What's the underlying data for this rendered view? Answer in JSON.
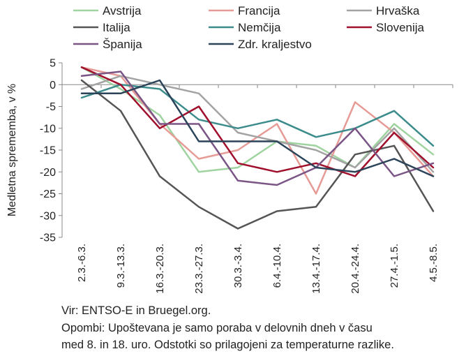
{
  "chart_data": {
    "type": "line",
    "ylabel": "Medletna sprememba, v %",
    "ylim": [
      -35,
      5
    ],
    "yticks": [
      5,
      0,
      -5,
      -10,
      -15,
      -20,
      -25,
      -30,
      -35
    ],
    "categories": [
      "2.3.-6.3.",
      "9.3.-13.3.",
      "16.3.-20.3.",
      "23.3.-27.3.",
      "30.3.-3.4.",
      "6.4.-10.4.",
      "13.4.-17.4.",
      "20.4.-24.4.",
      "27.4.-1.5.",
      "4.5.-8.5."
    ],
    "grid": false,
    "legend_position": "top",
    "series": [
      {
        "name": "Avstrija",
        "color": "#9fd39f",
        "values": [
          4,
          -1,
          -7,
          -20,
          -19,
          -13,
          -14,
          -19,
          -9,
          -16
        ]
      },
      {
        "name": "Francija",
        "color": "#e79b96",
        "values": [
          4,
          2,
          -9,
          -17,
          -15,
          -9,
          -25,
          -4,
          -11,
          -21
        ]
      },
      {
        "name": "Hrvaška",
        "color": "#a3a3a3",
        "values": [
          -1,
          2,
          0,
          -2,
          -11,
          -13,
          -15,
          -19,
          -10,
          -20
        ]
      },
      {
        "name": "Italija",
        "color": "#555555",
        "values": [
          1,
          -6,
          -21,
          -28,
          -33,
          -29,
          -28,
          -16,
          -14,
          -29
        ]
      },
      {
        "name": "Nemčija",
        "color": "#3d8c8c",
        "values": [
          -3,
          0,
          -1,
          -8,
          -10,
          -8,
          -12,
          -10,
          -6,
          -14
        ]
      },
      {
        "name": "Slovenija",
        "color": "#a0102c",
        "values": [
          4,
          0,
          -10,
          -5,
          -18,
          -20,
          -18,
          -21,
          -11,
          -19
        ]
      },
      {
        "name": "Španija",
        "color": "#7a5585",
        "values": [
          2,
          3,
          -9,
          -9,
          -22,
          -23,
          -19,
          -10,
          -21,
          -18
        ]
      },
      {
        "name": "Zdr. kraljestvo",
        "color": "#2c4459",
        "values": [
          -2,
          -2,
          1,
          -13,
          -13,
          -13,
          -19,
          -20,
          -17,
          -21
        ]
      }
    ]
  },
  "notes": {
    "source": "Vir: ENTSO-E in Bruegel.org.",
    "remark_line1": "Opombi: Upoštevana je samo poraba v delovnih dneh v času",
    "remark_line2": "med 8. in 18. uro. Odstotki so prilagojeni za temperaturne razlike."
  }
}
